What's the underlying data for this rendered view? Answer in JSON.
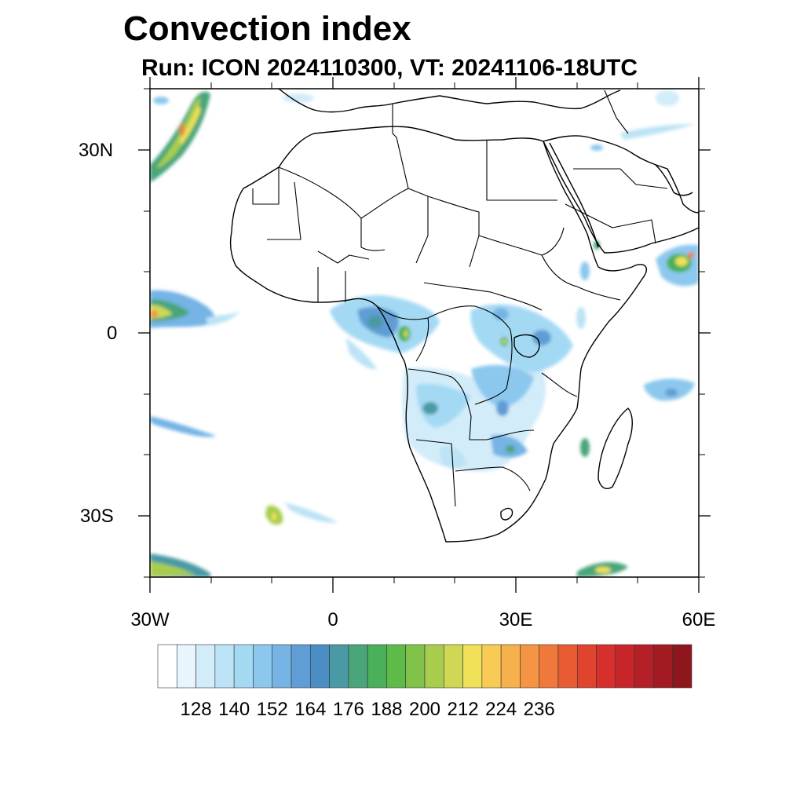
{
  "title": "Convection index",
  "subtitle": "Run: ICON 2024110300,  VT: 20241106-18UTC",
  "axes": {
    "lat_labels": [
      "30N",
      "0",
      "30S"
    ],
    "lon_labels": [
      "30W",
      "0",
      "30E",
      "60E"
    ],
    "lat_range": [
      -40,
      40
    ],
    "lon_range": [
      -30,
      60
    ]
  },
  "colorbar": {
    "labels": [
      "128",
      "140",
      "152",
      "164",
      "176",
      "188",
      "200",
      "212",
      "224",
      "236"
    ],
    "colors": [
      "#ffffff",
      "#e9f5fc",
      "#d2ecf9",
      "#bce3f6",
      "#a4d9f4",
      "#8cc8ee",
      "#75b4e4",
      "#5f9dd4",
      "#4a8ec4",
      "#4a9aa5",
      "#4aa57a",
      "#4ab05a",
      "#5fbb48",
      "#80c24a",
      "#a8cd4e",
      "#cfd855",
      "#f0e158",
      "#f8cb55",
      "#f6b04c",
      "#f49444",
      "#f0783a",
      "#e95c33",
      "#e0432e",
      "#d72f2c",
      "#c8252b",
      "#b51f27",
      "#a21b22",
      "#8e171e"
    ]
  },
  "legend_colors": {
    "ocean": "#ffffff",
    "coast": "#000000"
  }
}
